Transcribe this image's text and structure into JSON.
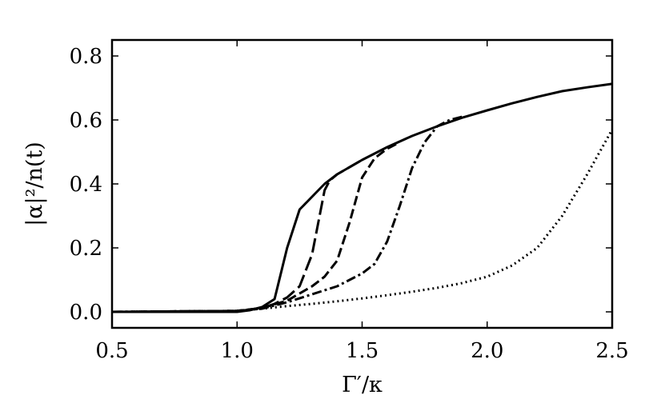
{
  "chart_data": {
    "type": "line",
    "title": "",
    "xlabel": "Γ′/κ",
    "ylabel": "|α|²/n(t)",
    "xlim": [
      0.5,
      2.5
    ],
    "ylim": [
      -0.05,
      0.85
    ],
    "xticks": [
      0.5,
      1.0,
      1.5,
      2.0,
      2.5
    ],
    "xtick_labels": [
      "0.5",
      "1.0",
      "1.5",
      "2.0",
      "2.5"
    ],
    "yticks": [
      0.0,
      0.2,
      0.4,
      0.6,
      0.8
    ],
    "ytick_labels": [
      "0.0",
      "0.2",
      "0.4",
      "0.6",
      "0.8"
    ],
    "grid": false,
    "legend": "none",
    "color": "#000000",
    "series": [
      {
        "style": "solid",
        "x": [
          0.5,
          1.0,
          1.05,
          1.1,
          1.15,
          1.2,
          1.25,
          1.3,
          1.35,
          1.4,
          1.5,
          1.6,
          1.7,
          1.8,
          1.9,
          2.0,
          2.1,
          2.2,
          2.3,
          2.4,
          2.5
        ],
        "y": [
          0.0,
          0.0,
          0.005,
          0.015,
          0.04,
          0.2,
          0.32,
          0.36,
          0.4,
          0.43,
          0.475,
          0.515,
          0.55,
          0.58,
          0.607,
          0.63,
          0.652,
          0.672,
          0.69,
          0.702,
          0.713
        ]
      },
      {
        "style": "long-dash",
        "x": [
          0.5,
          1.0,
          1.1,
          1.15,
          1.2,
          1.25,
          1.3,
          1.35,
          1.37,
          1.4,
          1.5
        ],
        "y": [
          0.0,
          0.003,
          0.012,
          0.025,
          0.045,
          0.08,
          0.18,
          0.38,
          0.41,
          0.43,
          0.475
        ]
      },
      {
        "style": "dashed",
        "x": [
          0.5,
          1.0,
          1.1,
          1.2,
          1.3,
          1.35,
          1.4,
          1.45,
          1.5,
          1.55,
          1.6,
          1.65
        ],
        "y": [
          0.0,
          0.003,
          0.012,
          0.035,
          0.08,
          0.11,
          0.16,
          0.28,
          0.42,
          0.48,
          0.51,
          0.53
        ]
      },
      {
        "style": "dash-dot",
        "x": [
          0.5,
          1.0,
          1.1,
          1.2,
          1.3,
          1.4,
          1.5,
          1.55,
          1.6,
          1.65,
          1.7,
          1.75,
          1.8,
          1.85,
          1.9
        ],
        "y": [
          0.0,
          0.003,
          0.01,
          0.03,
          0.055,
          0.08,
          0.12,
          0.15,
          0.22,
          0.33,
          0.45,
          0.53,
          0.58,
          0.6,
          0.61
        ]
      },
      {
        "style": "dotted",
        "x": [
          0.5,
          1.0,
          1.1,
          1.2,
          1.3,
          1.4,
          1.5,
          1.6,
          1.7,
          1.8,
          1.9,
          2.0,
          2.1,
          2.2,
          2.3,
          2.4,
          2.5
        ],
        "y": [
          0.0,
          0.003,
          0.01,
          0.018,
          0.025,
          0.033,
          0.042,
          0.052,
          0.063,
          0.075,
          0.09,
          0.11,
          0.145,
          0.2,
          0.3,
          0.43,
          0.57
        ]
      }
    ]
  }
}
